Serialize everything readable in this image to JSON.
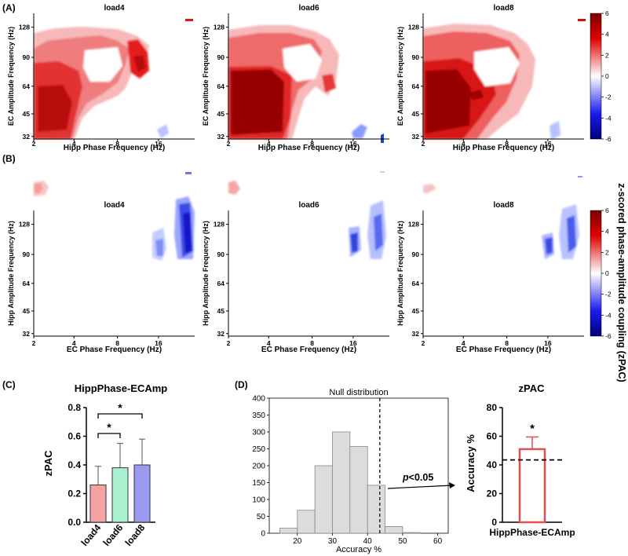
{
  "colorbar": {
    "label": "z-scored phase-amplitude coupling (zPAC)",
    "ticks": [
      "6",
      "4",
      "2",
      "0",
      "-2",
      "-4",
      "-6"
    ],
    "colors": [
      "#8b0000",
      "#ff0000",
      "#ffffff",
      "#0000ff",
      "#00008b"
    ]
  },
  "panel_A": {
    "label": "(A)",
    "xlabel": "Hipp Phase Frequency (Hz)",
    "ylabel": "EC Amplitude Frequency (Hz)",
    "xticks": [
      "2",
      "4",
      "8",
      "16"
    ],
    "yticks": [
      "128",
      "90",
      "64",
      "45",
      "32"
    ],
    "titles": [
      "load4",
      "load6",
      "load8"
    ]
  },
  "panel_B": {
    "label": "(B)",
    "xlabel": "EC Phase Frequency (Hz)",
    "ylabel": "Hipp Amplitude Frequency (Hz)",
    "xticks": [
      "2",
      "4",
      "8",
      "16"
    ],
    "yticks": [
      "128",
      "90",
      "64",
      "45",
      "32"
    ],
    "titles": [
      "load4",
      "load6",
      "load8"
    ]
  },
  "panel_C": {
    "label": "(C)",
    "sig": [
      "*",
      "*"
    ]
  },
  "panel_D": {
    "label": "(D)",
    "p_text": "<0.05",
    "p_letter": "p"
  },
  "chart_data": [
    {
      "type": "bar",
      "title": "HippPhase-ECAmp",
      "ylabel": "zPAC",
      "xlabel": "",
      "categories": [
        "load4",
        "load6",
        "load8"
      ],
      "values": [
        0.26,
        0.38,
        0.4
      ],
      "errors": [
        0.13,
        0.17,
        0.18
      ],
      "colors": [
        "#f4a3a3",
        "#a8f0cf",
        "#9a9af0"
      ],
      "ylim": [
        0.0,
        0.8
      ],
      "yticks": [
        "0.0",
        "0.2",
        "0.4",
        "0.6",
        "0.8"
      ]
    },
    {
      "type": "bar",
      "title": "Null distribution",
      "xlabel": "Accuracy %",
      "ylabel": "",
      "bin_edges": [
        15,
        20,
        25,
        30,
        35,
        40,
        45,
        50,
        55,
        60
      ],
      "counts": [
        15,
        68,
        200,
        300,
        257,
        142,
        20,
        2,
        0
      ],
      "threshold": 43.5,
      "xlim": [
        12,
        63
      ],
      "ylim": [
        0,
        400
      ],
      "xticks": [
        "20",
        "30",
        "40",
        "50",
        "60"
      ],
      "yticks": [
        "0",
        "50",
        "100",
        "150",
        "200",
        "250",
        "300",
        "350",
        "400"
      ]
    },
    {
      "type": "bar",
      "title": "zPAC",
      "xlabel": "",
      "ylabel": "Accuracy %",
      "categories": [
        "HippPhase-ECAmp"
      ],
      "values": [
        51
      ],
      "errors": [
        8.5
      ],
      "chance_line": 43.5,
      "ylim": [
        0,
        80
      ],
      "yticks": [
        "0",
        "20",
        "40",
        "60",
        "80"
      ],
      "sig": "*"
    }
  ]
}
